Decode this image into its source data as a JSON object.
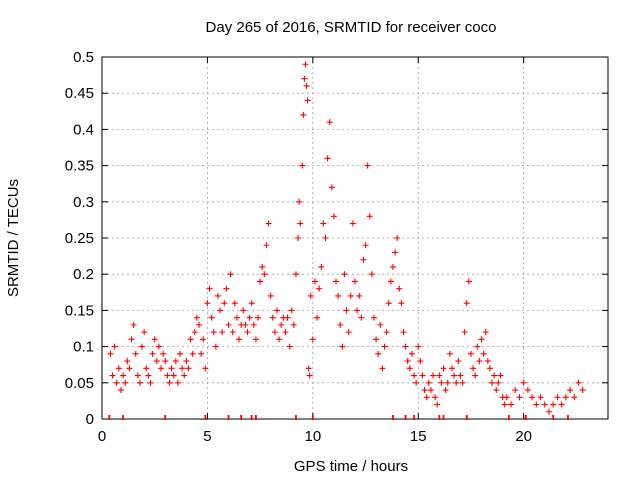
{
  "chart_data": {
    "type": "scatter",
    "title": "Day 265 of 2016, SRMTID for receiver coco",
    "xlabel": "GPS time / hours",
    "ylabel": "SRMTID / TECUs",
    "xlim": [
      0,
      24
    ],
    "ylim": [
      0,
      0.5
    ],
    "grid": true,
    "x_ticks": [
      0,
      5,
      10,
      15,
      20
    ],
    "x_tick_labels": [
      "0",
      "5",
      "10",
      "15",
      "20"
    ],
    "y_ticks": [
      0,
      0.05,
      0.1,
      0.15,
      0.2,
      0.25,
      0.3,
      0.35,
      0.4,
      0.45,
      0.5
    ],
    "y_tick_labels": [
      "0",
      "0.05",
      "0.1",
      "0.15",
      "0.2",
      "0.25",
      "0.3",
      "0.35",
      "0.4",
      "0.45",
      "0.5"
    ],
    "marker": "plus",
    "series_color": "#ff0000",
    "series": [
      {
        "name": "SRMTID",
        "points": [
          [
            0.4,
            0.09
          ],
          [
            0.5,
            0.06
          ],
          [
            0.6,
            0.1
          ],
          [
            0.7,
            0.05
          ],
          [
            0.8,
            0.07
          ],
          [
            0.9,
            0.04
          ],
          [
            1.0,
            0.06
          ],
          [
            1.1,
            0.05
          ],
          [
            1.2,
            0.08
          ],
          [
            1.3,
            0.07
          ],
          [
            1.4,
            0.11
          ],
          [
            1.5,
            0.13
          ],
          [
            1.6,
            0.09
          ],
          [
            1.7,
            0.06
          ],
          [
            1.8,
            0.05
          ],
          [
            1.9,
            0.1
          ],
          [
            2.0,
            0.12
          ],
          [
            2.1,
            0.07
          ],
          [
            2.2,
            0.06
          ],
          [
            2.3,
            0.05
          ],
          [
            2.4,
            0.09
          ],
          [
            2.5,
            0.11
          ],
          [
            2.6,
            0.08
          ],
          [
            2.7,
            0.1
          ],
          [
            2.8,
            0.07
          ],
          [
            2.9,
            0.09
          ],
          [
            3.0,
            0.08
          ],
          [
            3.1,
            0.06
          ],
          [
            3.2,
            0.05
          ],
          [
            3.3,
            0.07
          ],
          [
            3.4,
            0.06
          ],
          [
            3.5,
            0.08
          ],
          [
            3.6,
            0.05
          ],
          [
            3.7,
            0.09
          ],
          [
            3.8,
            0.07
          ],
          [
            3.9,
            0.06
          ],
          [
            4.0,
            0.08
          ],
          [
            4.1,
            0.07
          ],
          [
            4.2,
            0.11
          ],
          [
            4.3,
            0.09
          ],
          [
            4.4,
            0.12
          ],
          [
            4.5,
            0.14
          ],
          [
            4.6,
            0.13
          ],
          [
            4.7,
            0.09
          ],
          [
            4.8,
            0.11
          ],
          [
            4.9,
            0.07
          ],
          [
            5.0,
            0.16
          ],
          [
            5.1,
            0.18
          ],
          [
            5.2,
            0.14
          ],
          [
            5.3,
            0.12
          ],
          [
            5.4,
            0.1
          ],
          [
            5.5,
            0.17
          ],
          [
            5.6,
            0.15
          ],
          [
            5.7,
            0.12
          ],
          [
            5.8,
            0.16
          ],
          [
            5.9,
            0.18
          ],
          [
            6.0,
            0.13
          ],
          [
            6.1,
            0.2
          ],
          [
            6.2,
            0.12
          ],
          [
            6.3,
            0.16
          ],
          [
            6.4,
            0.14
          ],
          [
            6.5,
            0.11
          ],
          [
            6.6,
            0.13
          ],
          [
            6.7,
            0.15
          ],
          [
            6.8,
            0.13
          ],
          [
            6.9,
            0.12
          ],
          [
            7.0,
            0.14
          ],
          [
            7.1,
            0.16
          ],
          [
            7.2,
            0.13
          ],
          [
            7.3,
            0.11
          ],
          [
            7.4,
            0.14
          ],
          [
            7.5,
            0.19
          ],
          [
            7.6,
            0.21
          ],
          [
            7.7,
            0.2
          ],
          [
            7.8,
            0.24
          ],
          [
            7.9,
            0.27
          ],
          [
            8.0,
            0.17
          ],
          [
            8.1,
            0.14
          ],
          [
            8.2,
            0.12
          ],
          [
            8.3,
            0.15
          ],
          [
            8.4,
            0.11
          ],
          [
            8.5,
            0.13
          ],
          [
            8.6,
            0.14
          ],
          [
            8.7,
            0.12
          ],
          [
            8.8,
            0.14
          ],
          [
            8.9,
            0.1
          ],
          [
            9.0,
            0.15
          ],
          [
            9.1,
            0.13
          ],
          [
            9.2,
            0.2
          ],
          [
            9.3,
            0.25
          ],
          [
            9.35,
            0.3
          ],
          [
            9.4,
            0.27
          ],
          [
            9.5,
            0.35
          ],
          [
            9.55,
            0.42
          ],
          [
            9.6,
            0.47
          ],
          [
            9.65,
            0.49
          ],
          [
            9.7,
            0.46
          ],
          [
            9.75,
            0.44
          ],
          [
            9.8,
            0.07
          ],
          [
            9.85,
            0.06
          ],
          [
            9.9,
            0.17
          ],
          [
            10.0,
            0.11
          ],
          [
            10.1,
            0.19
          ],
          [
            10.2,
            0.14
          ],
          [
            10.3,
            0.18
          ],
          [
            10.4,
            0.21
          ],
          [
            10.5,
            0.27
          ],
          [
            10.6,
            0.25
          ],
          [
            10.7,
            0.36
          ],
          [
            10.8,
            0.41
          ],
          [
            10.9,
            0.32
          ],
          [
            11.0,
            0.28
          ],
          [
            11.1,
            0.19
          ],
          [
            11.2,
            0.17
          ],
          [
            11.3,
            0.13
          ],
          [
            11.4,
            0.1
          ],
          [
            11.5,
            0.2
          ],
          [
            11.6,
            0.15
          ],
          [
            11.7,
            0.12
          ],
          [
            11.8,
            0.17
          ],
          [
            11.9,
            0.27
          ],
          [
            12.0,
            0.19
          ],
          [
            12.1,
            0.15
          ],
          [
            12.2,
            0.17
          ],
          [
            12.3,
            0.14
          ],
          [
            12.4,
            0.22
          ],
          [
            12.5,
            0.24
          ],
          [
            12.6,
            0.35
          ],
          [
            12.7,
            0.28
          ],
          [
            12.8,
            0.2
          ],
          [
            12.9,
            0.14
          ],
          [
            13.0,
            0.11
          ],
          [
            13.1,
            0.09
          ],
          [
            13.2,
            0.13
          ],
          [
            13.3,
            0.07
          ],
          [
            13.4,
            0.1
          ],
          [
            13.5,
            0.12
          ],
          [
            13.6,
            0.16
          ],
          [
            13.7,
            0.19
          ],
          [
            13.8,
            0.21
          ],
          [
            13.9,
            0.23
          ],
          [
            14.0,
            0.25
          ],
          [
            14.1,
            0.18
          ],
          [
            14.2,
            0.16
          ],
          [
            14.3,
            0.12
          ],
          [
            14.4,
            0.1
          ],
          [
            14.5,
            0.08
          ],
          [
            14.6,
            0.07
          ],
          [
            14.7,
            0.09
          ],
          [
            14.8,
            0.06
          ],
          [
            14.9,
            0.05
          ],
          [
            15.0,
            0.1
          ],
          [
            15.1,
            0.08
          ],
          [
            15.2,
            0.06
          ],
          [
            15.3,
            0.04
          ],
          [
            15.4,
            0.03
          ],
          [
            15.5,
            0.05
          ],
          [
            15.6,
            0.04
          ],
          [
            15.7,
            0.06
          ],
          [
            15.8,
            0.03
          ],
          [
            15.9,
            0.02
          ],
          [
            16.0,
            0.06
          ],
          [
            16.1,
            0.05
          ],
          [
            16.2,
            0.07
          ],
          [
            16.3,
            0.04
          ],
          [
            16.4,
            0.05
          ],
          [
            16.5,
            0.09
          ],
          [
            16.6,
            0.07
          ],
          [
            16.7,
            0.06
          ],
          [
            16.8,
            0.05
          ],
          [
            16.9,
            0.08
          ],
          [
            17.0,
            0.06
          ],
          [
            17.1,
            0.05
          ],
          [
            17.2,
            0.12
          ],
          [
            17.3,
            0.16
          ],
          [
            17.4,
            0.19
          ],
          [
            17.5,
            0.09
          ],
          [
            17.6,
            0.07
          ],
          [
            17.7,
            0.06
          ],
          [
            17.8,
            0.1
          ],
          [
            17.9,
            0.08
          ],
          [
            18.0,
            0.11
          ],
          [
            18.1,
            0.09
          ],
          [
            18.2,
            0.12
          ],
          [
            18.3,
            0.08
          ],
          [
            18.4,
            0.07
          ],
          [
            18.5,
            0.05
          ],
          [
            18.6,
            0.06
          ],
          [
            18.7,
            0.04
          ],
          [
            18.8,
            0.05
          ],
          [
            18.9,
            0.06
          ],
          [
            19.0,
            0.03
          ],
          [
            19.1,
            0.02
          ],
          [
            19.2,
            0.03
          ],
          [
            19.4,
            0.02
          ],
          [
            19.6,
            0.04
          ],
          [
            19.8,
            0.03
          ],
          [
            20.0,
            0.05
          ],
          [
            20.2,
            0.04
          ],
          [
            20.4,
            0.03
          ],
          [
            20.6,
            0.02
          ],
          [
            20.8,
            0.03
          ],
          [
            21.0,
            0.02
          ],
          [
            21.2,
            0.01
          ],
          [
            21.4,
            0.02
          ],
          [
            21.6,
            0.03
          ],
          [
            21.8,
            0.02
          ],
          [
            22.0,
            0.03
          ],
          [
            22.2,
            0.04
          ],
          [
            22.4,
            0.03
          ],
          [
            22.6,
            0.05
          ],
          [
            22.8,
            0.04
          ]
        ]
      }
    ],
    "data_gaps": [
      0.35,
      1.0,
      3.0,
      4.9,
      6.0,
      6.6,
      7.1,
      7.3,
      9.2,
      10.0,
      13.8,
      14.4,
      14.8,
      16.0,
      16.2,
      17.3,
      19.3,
      20.1,
      21.4,
      22.1
    ]
  }
}
